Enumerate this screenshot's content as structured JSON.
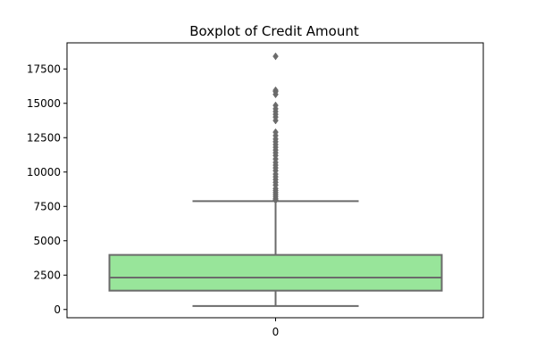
{
  "chart_data": {
    "type": "box",
    "title": "Boxplot of Credit Amount",
    "xlabel": "",
    "ylabel": "",
    "categories": [
      "0"
    ],
    "ylim": [
      -600,
      19400
    ],
    "yticks": [
      0,
      2500,
      5000,
      7500,
      10000,
      12500,
      15000,
      17500
    ],
    "ytick_labels": [
      "0",
      "2500",
      "5000",
      "7500",
      "10000",
      "12500",
      "15000",
      "17500"
    ],
    "grid": false,
    "colors": {
      "box_fill": "#98e59a",
      "line": "#6b6b6b"
    },
    "series": [
      {
        "category": "0",
        "whisker_low": 250,
        "q1": 1370,
        "median": 2320,
        "q3": 3970,
        "whisker_high": 7880,
        "outliers": [
          7950,
          8050,
          8200,
          8350,
          8500,
          8650,
          8800,
          9050,
          9250,
          9450,
          9650,
          9850,
          10100,
          10300,
          10500,
          10700,
          10950,
          11200,
          11400,
          11600,
          11800,
          12000,
          12200,
          12400,
          12650,
          12900,
          13750,
          14000,
          14200,
          14400,
          14600,
          14850,
          15650,
          15850,
          15950,
          18420
        ]
      }
    ]
  }
}
